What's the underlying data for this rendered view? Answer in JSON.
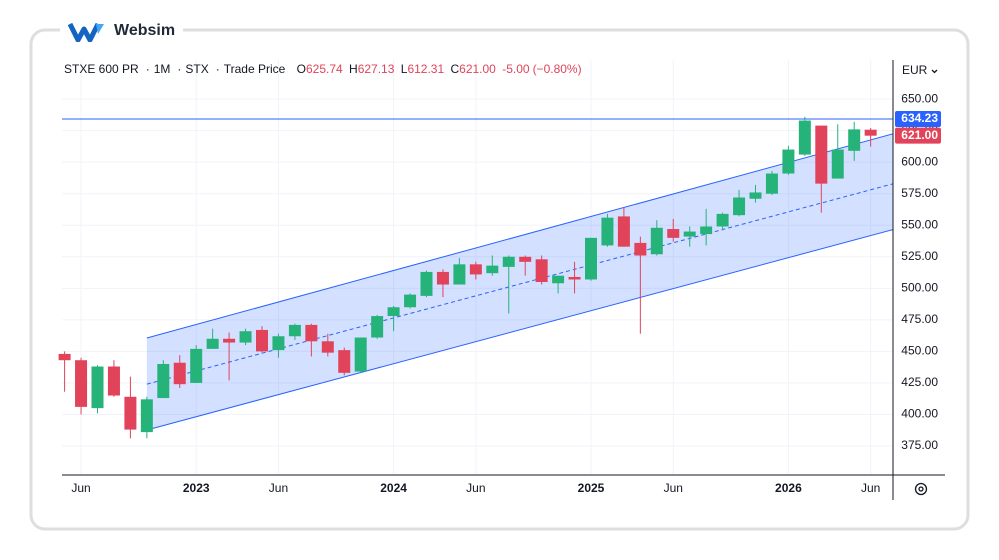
{
  "brand": "Websim",
  "header": {
    "symbol": "STXE 600 PR",
    "interval": "1M",
    "exchange": "STX",
    "price_type": "Trade Price",
    "separator": "·",
    "open_label": "O",
    "open": "625.74",
    "high_label": "H",
    "high": "627.13",
    "low_label": "L",
    "low": "612.31",
    "close_label": "C",
    "close": "621.00",
    "change": "-5.00",
    "change_pct": "(−0.80%)",
    "value_color": "#e0435a"
  },
  "currency": "EUR",
  "chart_data": {
    "type": "candlestick",
    "x": [
      "2022-05",
      "2022-06",
      "2022-07",
      "2022-08",
      "2022-09",
      "2022-10",
      "2022-11",
      "2022-12",
      "2023-01",
      "2023-02",
      "2023-03",
      "2023-04",
      "2023-05",
      "2023-06",
      "2023-07",
      "2023-08",
      "2023-09",
      "2023-10",
      "2023-11",
      "2023-12",
      "2024-01",
      "2024-02",
      "2024-03",
      "2024-04",
      "2024-05",
      "2024-06",
      "2024-07",
      "2024-08",
      "2024-09",
      "2024-10",
      "2024-11",
      "2024-12",
      "2025-01",
      "2025-02",
      "2025-03",
      "2025-04",
      "2025-05",
      "2025-06",
      "2025-07",
      "2025-08",
      "2025-09",
      "2025-10",
      "2025-11",
      "2025-12",
      "2026-01",
      "2026-02",
      "2026-03",
      "2026-04",
      "2026-05",
      "2026-06"
    ],
    "open": [
      448,
      443,
      405,
      438,
      414,
      386,
      413,
      441,
      425,
      452,
      460,
      457,
      467,
      451,
      462,
      471,
      458,
      451,
      434,
      461,
      478,
      485,
      494,
      513,
      503,
      519,
      512,
      517,
      525,
      523,
      504,
      509,
      507,
      534,
      557,
      536,
      527,
      547,
      541,
      543,
      549,
      558,
      571,
      575,
      591,
      606,
      629,
      587,
      609,
      625.74
    ],
    "high": [
      450,
      445,
      439,
      443,
      430,
      414,
      443,
      447,
      455,
      468,
      465,
      468,
      470,
      464,
      472,
      472,
      464,
      453,
      461,
      479,
      486,
      496,
      514,
      515,
      524,
      521,
      526,
      526,
      526,
      526,
      510,
      521,
      540,
      559,
      564,
      541,
      554,
      555,
      549,
      563,
      560,
      578,
      582,
      593,
      613,
      636,
      629,
      630,
      632,
      627.13
    ],
    "low": [
      418,
      400,
      401,
      414,
      381,
      381,
      413,
      421,
      425,
      452,
      427,
      455,
      449,
      445,
      459,
      446,
      446,
      431,
      433,
      460,
      466,
      484,
      493,
      493,
      503,
      507,
      510,
      480,
      510,
      503,
      496,
      496,
      506,
      533,
      533,
      464,
      526,
      537,
      533,
      534,
      546,
      557,
      568,
      574,
      590,
      605,
      560,
      587,
      601,
      612.31
    ],
    "close": [
      443,
      406,
      438,
      415,
      388,
      412,
      440,
      424,
      452,
      460,
      457,
      466,
      450,
      462,
      471,
      458,
      449,
      433,
      461,
      478,
      485,
      495,
      513,
      503,
      519,
      511,
      518,
      525,
      521,
      505,
      510,
      507,
      540,
      556,
      533,
      526,
      548,
      540,
      545,
      549,
      559,
      572,
      576,
      591,
      610,
      633,
      583,
      610,
      626,
      621
    ],
    "up_color": "#26b37a",
    "down_color": "#e0435a",
    "ylim": [
      352,
      681
    ],
    "yticks": [
      {
        "value": 375,
        "label": "375.00"
      },
      {
        "value": 400,
        "label": "400.00"
      },
      {
        "value": 425,
        "label": "425.00"
      },
      {
        "value": 450,
        "label": "450.00"
      },
      {
        "value": 475,
        "label": "475.00"
      },
      {
        "value": 500,
        "label": "500.00"
      },
      {
        "value": 525,
        "label": "525.00"
      },
      {
        "value": 550,
        "label": "550.00"
      },
      {
        "value": 575,
        "label": "575.00"
      },
      {
        "value": 600,
        "label": "600.00"
      },
      {
        "value": 625,
        "label": "625.00"
      },
      {
        "value": 650,
        "label": "650.00"
      }
    ],
    "xticks": [
      {
        "value": "2022-06",
        "label": "Jun"
      },
      {
        "value": "2023-01",
        "label": "2023"
      },
      {
        "value": "2023-06",
        "label": "Jun"
      },
      {
        "value": "2024-01",
        "label": "2024"
      },
      {
        "value": "2024-06",
        "label": "Jun"
      },
      {
        "value": "2025-01",
        "label": "2025"
      },
      {
        "value": "2025-06",
        "label": "Jun"
      },
      {
        "value": "2026-01",
        "label": "2026"
      },
      {
        "value": "2026-06",
        "label": "Jun"
      }
    ],
    "grid": true,
    "hline": {
      "value": 634.23,
      "label": "634.23",
      "color": "#2962ff"
    },
    "last_price": {
      "value": 621,
      "label": "621.00"
    },
    "channel": {
      "x": [
        "2022-10",
        "2026-07"
      ],
      "upper": [
        460.6,
        621.2
      ],
      "middle": [
        424,
        581.6
      ],
      "lower": [
        387.7,
        545.3
      ],
      "color": "#2962ff"
    }
  }
}
